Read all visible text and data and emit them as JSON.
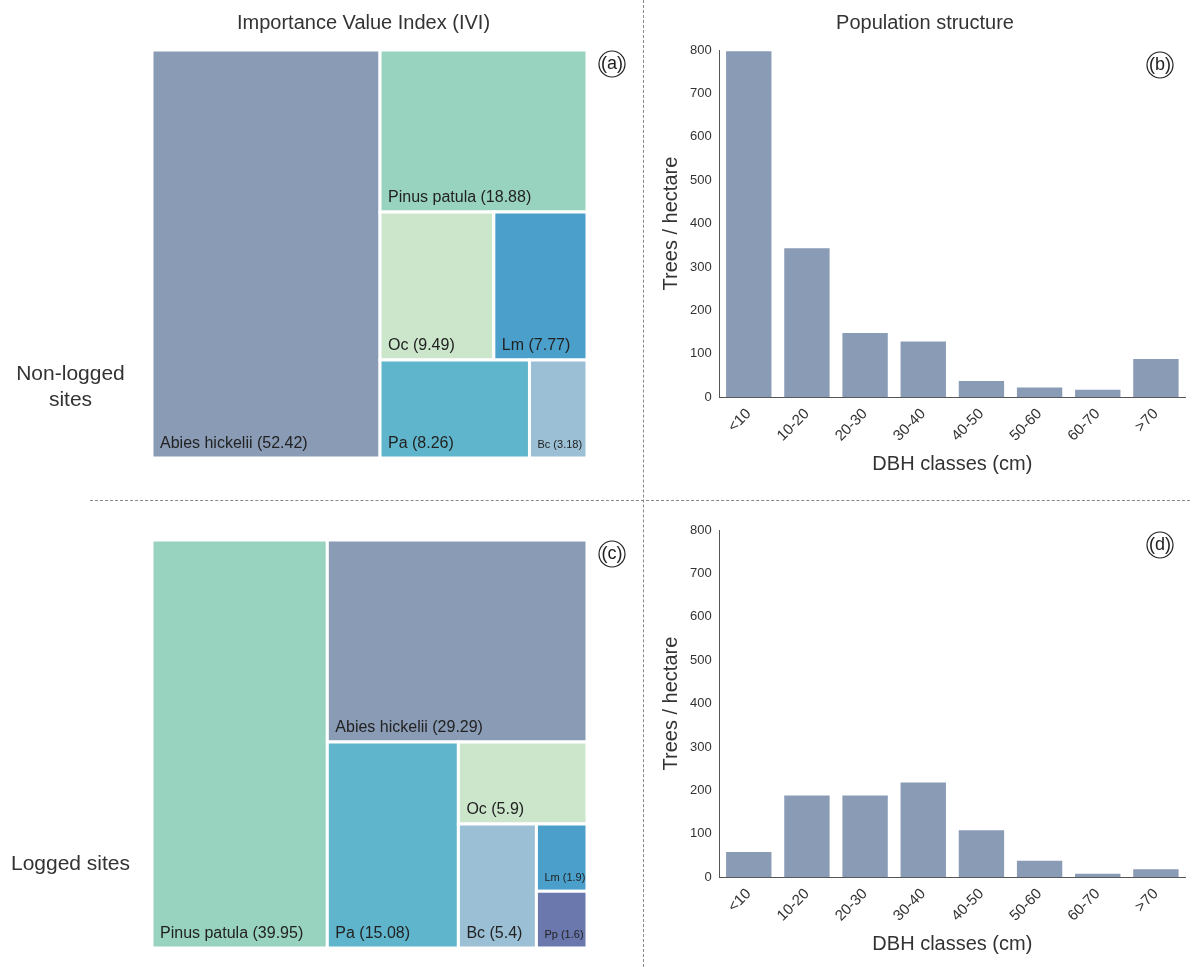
{
  "chart_data": [
    {
      "type": "other",
      "title": "Importance Value Index (IVI)",
      "categories": [
        "Abies hickelii",
        "Pinus patula",
        "Oc",
        "Lm",
        "Pa",
        "Bc"
      ],
      "data_labels": true,
      "value_labels": [
        "(52.42)",
        "(18.88)",
        "(9.49)",
        "(7.77)",
        "(8.26)",
        "(3.18)"
      ],
      "values": [
        52.42,
        18.88,
        9.49,
        7.77,
        8.26,
        3.18
      ],
      "colors": [
        "#8a9bb5",
        "#98d3c0",
        "#cce6cb",
        "#4a9fcb",
        "#5fb5cb",
        "#9bbfd4"
      ],
      "annotations": [
        "(a)",
        "Non-logged sites"
      ]
    },
    {
      "type": "bar",
      "title": "Population structure",
      "categories": [
        "<10",
        "10-20",
        "20-30",
        "30-40",
        "40-50",
        "50-60",
        "60-70",
        ">70"
      ],
      "values": [
        797,
        343,
        148,
        128,
        37,
        22,
        17,
        88
      ],
      "color": "#8a9bb5",
      "ylim": [
        0,
        800
      ],
      "yticks": [
        0,
        100,
        200,
        300,
        400,
        500,
        600,
        700,
        800
      ],
      "xlabel": "DBH classes (cm)",
      "ylabel": "Trees / hectare",
      "annotations": [
        "(b)"
      ]
    },
    {
      "type": "other",
      "categories": [
        "Pinus patula",
        "Abies hickelii",
        "Pa",
        "Oc",
        "Bc",
        "Lm",
        "Pp"
      ],
      "data_labels": true,
      "value_labels": [
        "(39.95)",
        "(29.29)",
        "(15.08)",
        "(5.9)",
        "(5.4)",
        "(1.9)",
        "(1.6)"
      ],
      "values": [
        39.95,
        29.29,
        15.08,
        5.9,
        5.4,
        1.9,
        1.6
      ],
      "colors": [
        "#98d3c0",
        "#8a9bb5",
        "#5fb5cb",
        "#cce6cb",
        "#9bbfd4",
        "#4a9fcb",
        "#6a78ae"
      ],
      "annotations": [
        "(c)",
        "Logged sites"
      ]
    },
    {
      "type": "bar",
      "categories": [
        "<10",
        "10-20",
        "20-30",
        "30-40",
        "40-50",
        "50-60",
        "60-70",
        ">70"
      ],
      "values": [
        58,
        188,
        188,
        218,
        108,
        38,
        8,
        18
      ],
      "color": "#8a9bb5",
      "ylim": [
        0,
        800
      ],
      "yticks": [
        0,
        100,
        200,
        300,
        400,
        500,
        600,
        700,
        800
      ],
      "xlabel": "DBH classes (cm)",
      "ylabel": "Trees / hectare",
      "annotations": [
        "(d)"
      ]
    }
  ]
}
